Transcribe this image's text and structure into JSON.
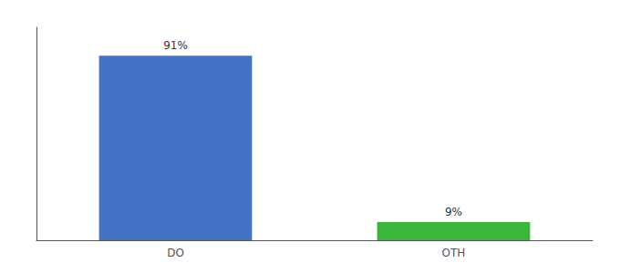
{
  "chart_data": {
    "type": "bar",
    "categories": [
      "DO",
      "OTH"
    ],
    "values": [
      91,
      9
    ],
    "value_labels": [
      "91%",
      "9%"
    ],
    "colors": [
      "#4472c4",
      "#3db53d"
    ],
    "ylim": [
      0,
      105
    ],
    "grid": false,
    "data_labels": true,
    "tick_labels": "x"
  }
}
